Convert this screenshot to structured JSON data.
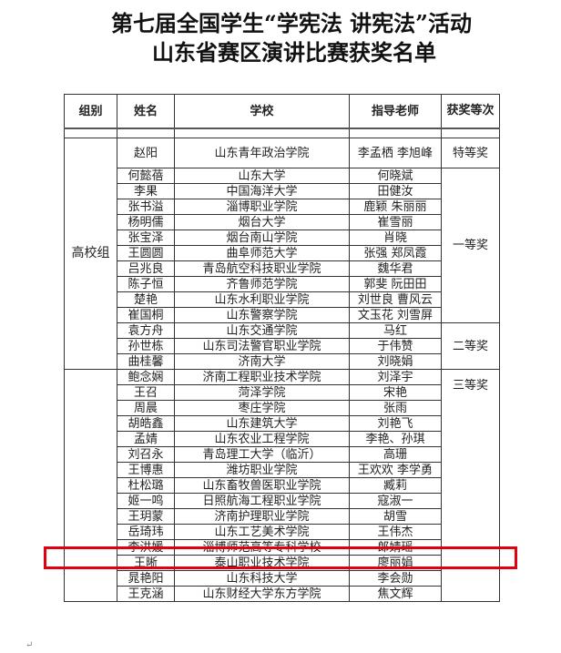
{
  "title": {
    "line1": "第七届全国学生“学宪法 讲宪法”活动",
    "line2": "山东省赛区演讲比赛获奖名单"
  },
  "headers": {
    "group": "组别",
    "name": "姓名",
    "school": "学校",
    "teacher": "指导老师",
    "award": "获奖等次"
  },
  "group_label": "高校组",
  "colors": {
    "highlight": "#e00010"
  },
  "highlighted_name": "岳琦玮",
  "sections": [
    {
      "award": "特等奖",
      "rows": [
        {
          "name": "赵阳",
          "school": "山东青年政治学院",
          "teacher": "李孟栖  李旭峰"
        }
      ]
    },
    {
      "award": "一等奖",
      "rows": [
        {
          "name": "何懿蓓",
          "school": "山东大学",
          "teacher": "何晓斌"
        },
        {
          "name": "李果",
          "school": "中国海洋大学",
          "teacher": "田健汝"
        },
        {
          "name": "张书溢",
          "school": "淄博职业学院",
          "teacher": "鹿颖  朱丽丽"
        },
        {
          "name": "杨明儒",
          "school": "烟台大学",
          "teacher": "崔雪丽"
        },
        {
          "name": "张宝泽",
          "school": "烟台南山学院",
          "teacher": "肖晓"
        },
        {
          "name": "王圆圆",
          "school": "曲阜师范大学",
          "teacher": "张强  郑凤霞"
        },
        {
          "name": "吕兆良",
          "school": "青岛航空科技职业学院",
          "teacher": "魏华君"
        },
        {
          "name": "陈子恒",
          "school": "齐鲁师范学院",
          "teacher": "郭斐  阮田田"
        },
        {
          "name": "楚艳",
          "school": "山东水利职业学院",
          "teacher": "刘世良  曹风云"
        },
        {
          "name": "崔国桐",
          "school": "山东警察学院",
          "teacher": "文玉花  刘雪屏"
        }
      ]
    },
    {
      "award": "二等奖",
      "rows": [
        {
          "name": "袁方舟",
          "school": "山东交通学院",
          "teacher": "马红"
        },
        {
          "name": "孙世栋",
          "school": "山东司法警官职业学院",
          "teacher": "于伟赞"
        },
        {
          "name": "曲桂馨",
          "school": "济南大学",
          "teacher": "刘晓娟"
        }
      ]
    },
    {
      "award": "三等奖",
      "rows": [
        {
          "name": "鲍念娴",
          "school": "济南工程职业技术学院",
          "teacher": "刘泽宇"
        },
        {
          "name": "王召",
          "school": "菏泽学院",
          "teacher": "宋艳"
        },
        {
          "name": "周晨",
          "school": "枣庄学院",
          "teacher": "张雨"
        },
        {
          "name": "胡皓鑫",
          "school": "山东建筑大学",
          "teacher": "刘艳飞"
        },
        {
          "name": "孟婧",
          "school": "山东农业工程学院",
          "teacher": "李艳、孙琪"
        },
        {
          "name": "刘召永",
          "school": "青岛理工大学（临沂）",
          "teacher": "高珊"
        },
        {
          "name": "王博惠",
          "school": "潍坊职业学院",
          "teacher": "王欢欢  李学勇"
        },
        {
          "name": "杜松璐",
          "school": "山东畜牧兽医职业学院",
          "teacher": "臧莉"
        },
        {
          "name": "姬一鸣",
          "school": "日照航海工程职业学院",
          "teacher": "寇淑一"
        },
        {
          "name": "王玥蒙",
          "school": "济南护理职业学院",
          "teacher": "胡雪"
        },
        {
          "name": "岳琦玮",
          "school": "山东工艺美术学院",
          "teacher": "王伟杰"
        },
        {
          "name": "李洪媛",
          "school": "淄博师范高等专科学校",
          "teacher": "郎婧瑶"
        },
        {
          "name": "王晰",
          "school": "泰山职业技术学院",
          "teacher": "廖丽娟"
        },
        {
          "name": "晁艳阳",
          "school": "山东科技大学",
          "teacher": "李会勋"
        },
        {
          "name": "王克涵",
          "school": "山东财经大学东方学院",
          "teacher": "焦文辉"
        }
      ]
    }
  ]
}
